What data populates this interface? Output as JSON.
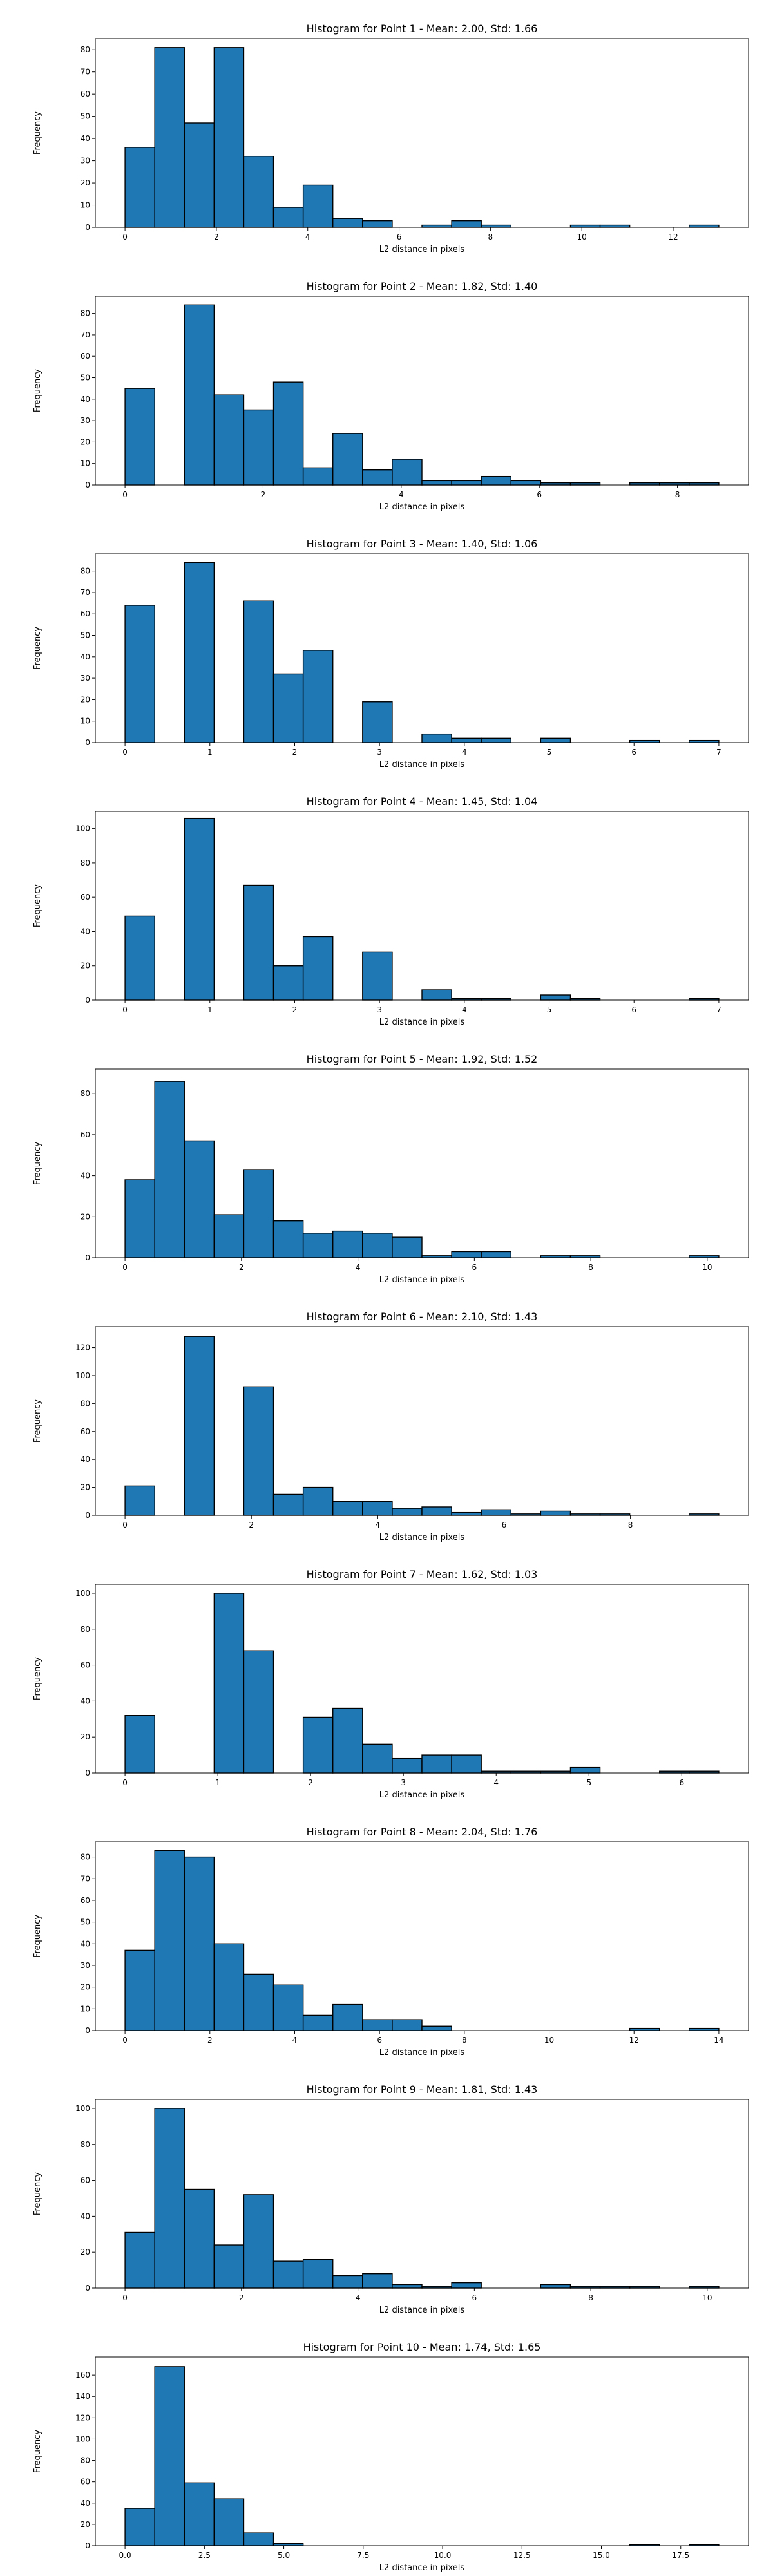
{
  "figure": {
    "background": "#ffffff",
    "bar_color": "#1f77b4",
    "edge_color": "#000000"
  },
  "chart_data": [
    {
      "type": "bar",
      "title": "Histogram for Point 1 - Mean: 2.00, Std: 1.66",
      "xlabel": "L2 distance in pixels",
      "ylabel": "Frequency",
      "xlim": [
        -0.65,
        13.65
      ],
      "ylim": [
        0,
        85
      ],
      "xticks": [
        0,
        2,
        4,
        6,
        8,
        10,
        12
      ],
      "yticks": [
        0,
        10,
        20,
        30,
        40,
        50,
        60,
        70,
        80
      ],
      "bin_edges": [
        0.0,
        0.65,
        1.3,
        1.95,
        2.6,
        3.25,
        3.9,
        4.55,
        5.2,
        5.85,
        6.5,
        7.15,
        7.8,
        8.45,
        9.1,
        9.75,
        10.4,
        11.05,
        11.7,
        12.35,
        13.0
      ],
      "values": [
        36,
        81,
        47,
        81,
        32,
        9,
        19,
        4,
        3,
        0,
        1,
        3,
        1,
        0,
        0,
        1,
        1,
        0,
        0,
        1
      ],
      "grid": false,
      "legend": false
    },
    {
      "type": "bar",
      "title": "Histogram for Point 2 - Mean: 1.82, Std: 1.40",
      "xlabel": "L2 distance in pixels",
      "ylabel": "Frequency",
      "xlim": [
        -0.43,
        9.03
      ],
      "ylim": [
        0,
        88
      ],
      "xticks": [
        0,
        2,
        4,
        6,
        8
      ],
      "yticks": [
        0,
        10,
        20,
        30,
        40,
        50,
        60,
        70,
        80
      ],
      "bin_edges": [
        0.0,
        0.43,
        0.86,
        1.29,
        1.72,
        2.15,
        2.58,
        3.01,
        3.44,
        3.87,
        4.3,
        4.73,
        5.16,
        5.59,
        6.02,
        6.45,
        6.88,
        7.31,
        7.74,
        8.17,
        8.6
      ],
      "values": [
        45,
        0,
        84,
        42,
        35,
        48,
        8,
        24,
        7,
        12,
        2,
        2,
        4,
        2,
        1,
        1,
        0,
        1,
        1,
        1
      ],
      "grid": false,
      "legend": false
    },
    {
      "type": "bar",
      "title": "Histogram for Point 3 - Mean: 1.40, Std: 1.06",
      "xlabel": "L2 distance in pixels",
      "ylabel": "Frequency",
      "xlim": [
        -0.35,
        7.35
      ],
      "ylim": [
        0,
        88
      ],
      "xticks": [
        0,
        1,
        2,
        3,
        4,
        5,
        6,
        7
      ],
      "yticks": [
        0,
        10,
        20,
        30,
        40,
        50,
        60,
        70,
        80
      ],
      "bin_edges": [
        0.0,
        0.35,
        0.7,
        1.05,
        1.4,
        1.75,
        2.1,
        2.45,
        2.8,
        3.15,
        3.5,
        3.85,
        4.2,
        4.55,
        4.9,
        5.25,
        5.6,
        5.95,
        6.3,
        6.65,
        7.0
      ],
      "values": [
        64,
        0,
        84,
        0,
        66,
        32,
        43,
        0,
        19,
        0,
        4,
        2,
        2,
        0,
        2,
        0,
        0,
        1,
        0,
        1
      ],
      "grid": false,
      "legend": false
    },
    {
      "type": "bar",
      "title": "Histogram for Point 4 - Mean: 1.45, Std: 1.04",
      "xlabel": "L2 distance in pixels",
      "ylabel": "Frequency",
      "xlim": [
        -0.35,
        7.35
      ],
      "ylim": [
        0,
        110
      ],
      "xticks": [
        0,
        1,
        2,
        3,
        4,
        5,
        6,
        7
      ],
      "yticks": [
        0,
        20,
        40,
        60,
        80,
        100
      ],
      "bin_edges": [
        0.0,
        0.35,
        0.7,
        1.05,
        1.4,
        1.75,
        2.1,
        2.45,
        2.8,
        3.15,
        3.5,
        3.85,
        4.2,
        4.55,
        4.9,
        5.25,
        5.6,
        5.95,
        6.3,
        6.65,
        7.0
      ],
      "values": [
        49,
        0,
        106,
        0,
        67,
        20,
        37,
        0,
        28,
        0,
        6,
        1,
        1,
        0,
        3,
        1,
        0,
        0,
        0,
        1
      ],
      "grid": false,
      "legend": false
    },
    {
      "type": "bar",
      "title": "Histogram for Point 5 - Mean: 1.92, Std: 1.52",
      "xlabel": "L2 distance in pixels",
      "ylabel": "Frequency",
      "xlim": [
        -0.51,
        10.71
      ],
      "ylim": [
        0,
        92
      ],
      "xticks": [
        0,
        2,
        4,
        6,
        8,
        10
      ],
      "yticks": [
        0,
        20,
        40,
        60,
        80
      ],
      "bin_edges": [
        0.0,
        0.51,
        1.02,
        1.53,
        2.04,
        2.55,
        3.06,
        3.57,
        4.08,
        4.59,
        5.1,
        5.61,
        6.12,
        6.63,
        7.14,
        7.65,
        8.16,
        8.67,
        9.18,
        9.69,
        10.2
      ],
      "values": [
        38,
        86,
        57,
        21,
        43,
        18,
        12,
        13,
        12,
        10,
        1,
        3,
        3,
        0,
        1,
        1,
        0,
        0,
        0,
        1
      ],
      "grid": false,
      "legend": false
    },
    {
      "type": "bar",
      "title": "Histogram for Point 6 - Mean: 2.10, Std: 1.43",
      "xlabel": "L2 distance in pixels",
      "ylabel": "Frequency",
      "xlim": [
        -0.47,
        9.87
      ],
      "ylim": [
        0,
        135
      ],
      "xticks": [
        0,
        2,
        4,
        6,
        8
      ],
      "yticks": [
        0,
        20,
        40,
        60,
        80,
        100,
        120
      ],
      "bin_edges": [
        0.0,
        0.47,
        0.94,
        1.41,
        1.88,
        2.35,
        2.82,
        3.29,
        3.76,
        4.23,
        4.7,
        5.17,
        5.64,
        6.11,
        6.58,
        7.05,
        7.52,
        7.99,
        8.46,
        8.93,
        9.4
      ],
      "values": [
        21,
        0,
        128,
        0,
        92,
        15,
        20,
        10,
        10,
        5,
        6,
        2,
        4,
        1,
        3,
        1,
        1,
        0,
        0,
        1
      ],
      "grid": false,
      "legend": false
    },
    {
      "type": "bar",
      "title": "Histogram for Point 7 - Mean: 1.62, Std: 1.03",
      "xlabel": "L2 distance in pixels",
      "ylabel": "Frequency",
      "xlim": [
        -0.32,
        6.72
      ],
      "ylim": [
        0,
        105
      ],
      "xticks": [
        0,
        1,
        2,
        3,
        4,
        5,
        6
      ],
      "yticks": [
        0,
        20,
        40,
        60,
        80,
        100
      ],
      "bin_edges": [
        0.0,
        0.32,
        0.64,
        0.96,
        1.28,
        1.6,
        1.92,
        2.24,
        2.56,
        2.88,
        3.2,
        3.52,
        3.84,
        4.16,
        4.48,
        4.8,
        5.12,
        5.44,
        5.76,
        6.08,
        6.4
      ],
      "values": [
        32,
        0,
        0,
        100,
        68,
        0,
        31,
        36,
        16,
        8,
        10,
        10,
        1,
        1,
        1,
        3,
        0,
        0,
        1,
        1
      ],
      "grid": false,
      "legend": false
    },
    {
      "type": "bar",
      "title": "Histogram for Point 8 - Mean: 2.04, Std: 1.76",
      "xlabel": "L2 distance in pixels",
      "ylabel": "Frequency",
      "xlim": [
        -0.7,
        14.7
      ],
      "ylim": [
        0,
        87
      ],
      "xticks": [
        0,
        2,
        4,
        6,
        8,
        10,
        12,
        14
      ],
      "yticks": [
        0,
        10,
        20,
        30,
        40,
        50,
        60,
        70,
        80
      ],
      "bin_edges": [
        0.0,
        0.7,
        1.4,
        2.1,
        2.8,
        3.5,
        4.2,
        4.9,
        5.6,
        6.3,
        7.0,
        7.7,
        8.4,
        9.1,
        9.8,
        10.5,
        11.2,
        11.9,
        12.6,
        13.3,
        14.0
      ],
      "values": [
        37,
        83,
        80,
        40,
        26,
        21,
        7,
        12,
        5,
        5,
        2,
        0,
        0,
        0,
        0,
        0,
        0,
        1,
        0,
        1
      ],
      "grid": false,
      "legend": false
    },
    {
      "type": "bar",
      "title": "Histogram for Point 9 - Mean: 1.81, Std: 1.43",
      "xlabel": "L2 distance in pixels",
      "ylabel": "Frequency",
      "xlim": [
        -0.51,
        10.71
      ],
      "ylim": [
        0,
        105
      ],
      "xticks": [
        0,
        2,
        4,
        6,
        8,
        10
      ],
      "yticks": [
        0,
        20,
        40,
        60,
        80,
        100
      ],
      "bin_edges": [
        0.0,
        0.51,
        1.02,
        1.53,
        2.04,
        2.55,
        3.06,
        3.57,
        4.08,
        4.59,
        5.1,
        5.61,
        6.12,
        6.63,
        7.14,
        7.65,
        8.16,
        8.67,
        9.18,
        9.69,
        10.2
      ],
      "values": [
        31,
        100,
        55,
        24,
        52,
        15,
        16,
        7,
        8,
        2,
        1,
        3,
        0,
        0,
        2,
        1,
        1,
        1,
        0,
        1
      ],
      "grid": false,
      "legend": false
    },
    {
      "type": "bar",
      "title": "Histogram for Point 10 - Mean: 1.74, Std: 1.65",
      "xlabel": "L2 distance in pixels",
      "ylabel": "Frequency",
      "xlim": [
        -0.935,
        19.635
      ],
      "ylim": [
        0,
        177
      ],
      "xticks": [
        0.0,
        2.5,
        5.0,
        7.5,
        10.0,
        12.5,
        15.0,
        17.5
      ],
      "xtick_labels": [
        "0.0",
        "2.5",
        "5.0",
        "7.5",
        "10.0",
        "12.5",
        "15.0",
        "17.5"
      ],
      "yticks": [
        0,
        20,
        40,
        60,
        80,
        100,
        120,
        140,
        160
      ],
      "bin_edges": [
        0.0,
        0.935,
        1.87,
        2.805,
        3.74,
        4.675,
        5.61,
        6.545,
        7.48,
        8.415,
        9.35,
        10.285,
        11.22,
        12.155,
        13.09,
        14.025,
        14.96,
        15.895,
        16.83,
        17.765,
        18.7
      ],
      "values": [
        35,
        168,
        59,
        44,
        12,
        2,
        0,
        0,
        0,
        0,
        0,
        0,
        0,
        0,
        0,
        0,
        0,
        1,
        0,
        1
      ],
      "grid": false,
      "legend": false
    }
  ]
}
